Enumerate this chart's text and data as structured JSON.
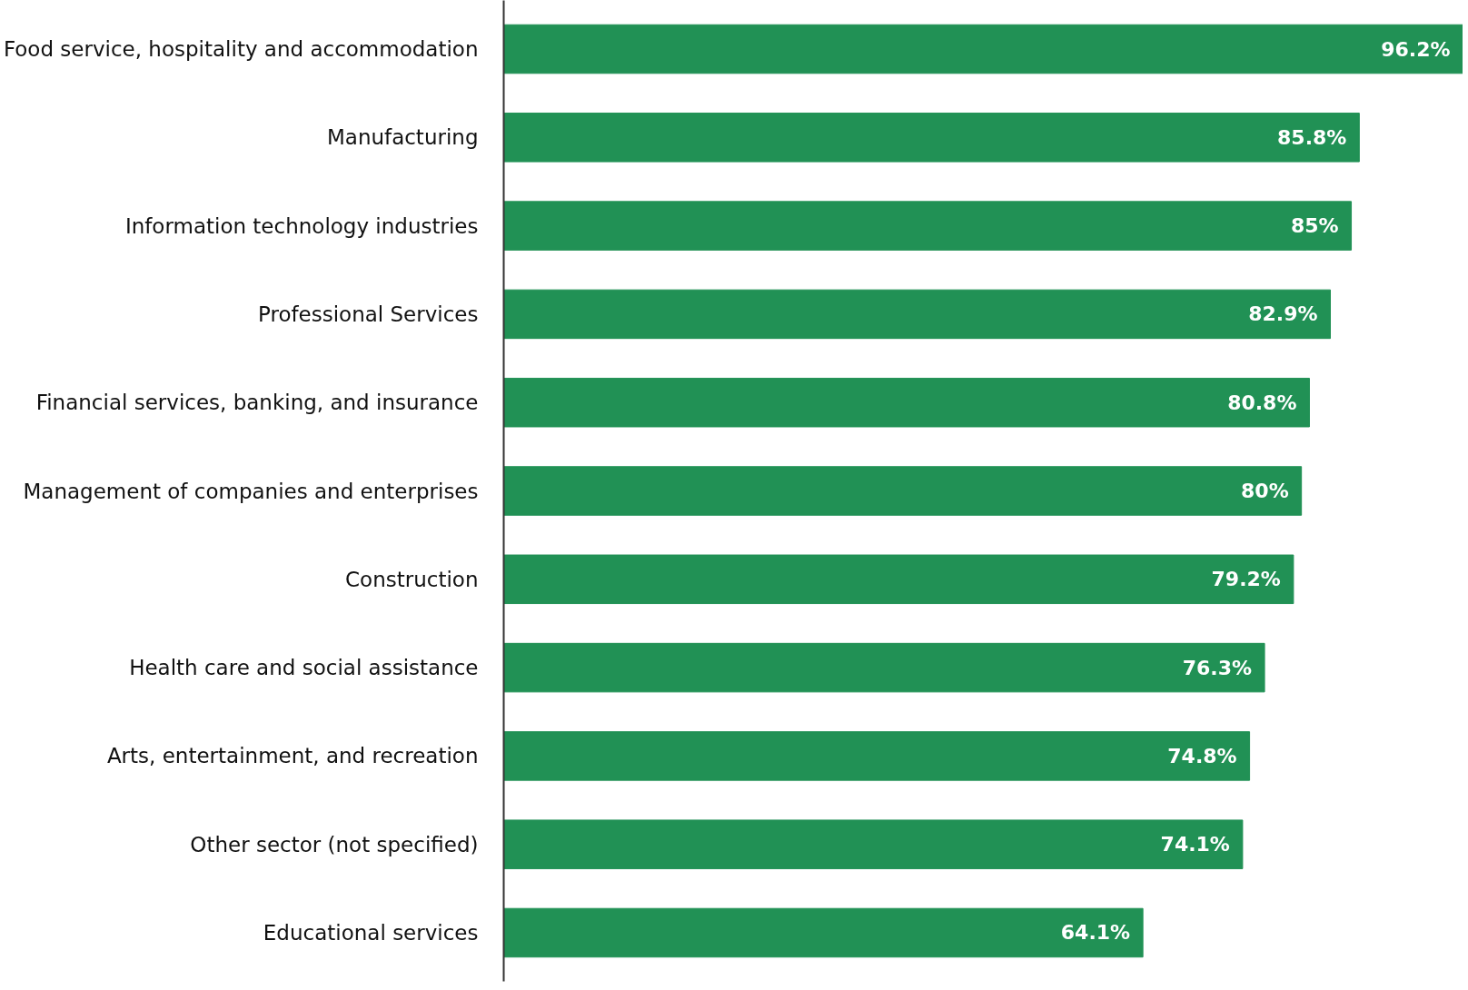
{
  "chart_data": {
    "type": "bar",
    "orientation": "horizontal",
    "categories": [
      "Food service, hospitality and accommodation",
      "Manufacturing",
      "Information technology industries",
      "Professional Services",
      "Financial services, banking, and insurance",
      "Management of companies and enterprises",
      "Construction",
      "Health care and social assistance",
      "Arts, entertainment, and recreation",
      "Other sector (not specified)",
      "Educational services"
    ],
    "values": [
      96.2,
      85.8,
      85,
      82.9,
      80.8,
      80,
      79.2,
      76.3,
      74.8,
      74.1,
      64.1
    ],
    "value_labels": [
      "96.2%",
      "85.8%",
      "85%",
      "82.9%",
      "80.8%",
      "80%",
      "79.2%",
      "76.3%",
      "74.8%",
      "74.1%",
      "64.1%"
    ],
    "color": "#219155",
    "xlim": [
      0,
      96.2
    ]
  }
}
